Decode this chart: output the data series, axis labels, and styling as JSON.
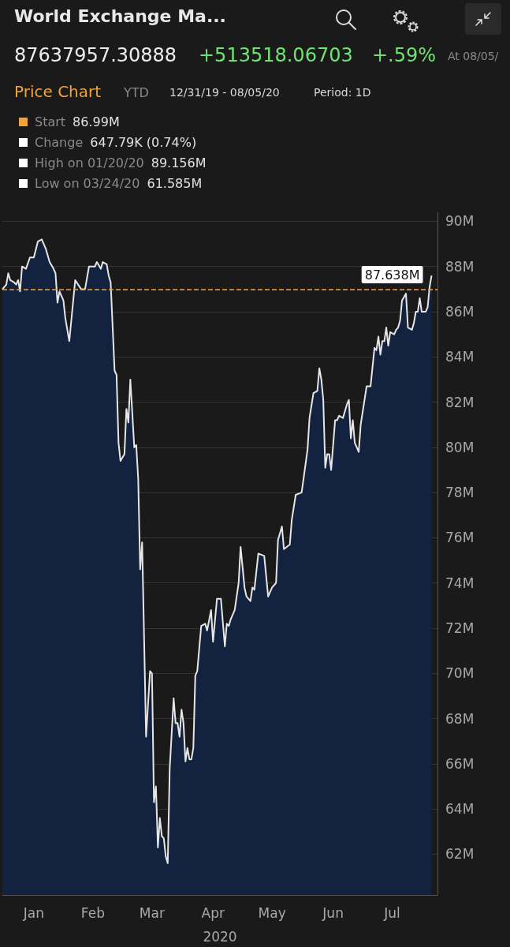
{
  "chart_data": {
    "type": "area",
    "title": "World Exchange Ma...",
    "subtitle": "Price Chart",
    "xlabel": "2020",
    "annotations": [
      "87637957.30888",
      "+513518.06703",
      "+.59%",
      "At 08/05/",
      "YTD",
      "12/31/19 - 08/05/20",
      "Period: 1D",
      "Start",
      "86.99M",
      "Change",
      "647.79K (0.74%)",
      "High on 01/20/20",
      "89.156M",
      "Low on 03/24/20",
      "61.585M",
      {
        "text": "87.638M",
        "x": "2020-08-05",
        "y": 87.638
      }
    ],
    "xlim": [
      "2019-12-31",
      "2020-08-08"
    ],
    "xticks": [
      {
        "value": "2020-01-16",
        "label": "Jan"
      },
      {
        "value": "2020-02-15",
        "label": "Feb"
      },
      {
        "value": "2020-03-16",
        "label": "Mar"
      },
      {
        "value": "2020-04-16",
        "label": "Apr"
      },
      {
        "value": "2020-05-16",
        "label": "May"
      },
      {
        "value": "2020-06-16",
        "label": "Jun"
      },
      {
        "value": "2020-07-16",
        "label": "Jul"
      }
    ],
    "ylim": [
      60.2,
      90.4
    ],
    "yticks": [
      {
        "value": 62,
        "label": "62M"
      },
      {
        "value": 64,
        "label": "64M"
      },
      {
        "value": 66,
        "label": "66M"
      },
      {
        "value": 68,
        "label": "68M"
      },
      {
        "value": 70,
        "label": "70M"
      },
      {
        "value": 72,
        "label": "72M"
      },
      {
        "value": 74,
        "label": "74M"
      },
      {
        "value": 76,
        "label": "76M"
      },
      {
        "value": 78,
        "label": "78M"
      },
      {
        "value": 80,
        "label": "80M"
      },
      {
        "value": 82,
        "label": "82M"
      },
      {
        "value": 84,
        "label": "84M"
      },
      {
        "value": 86,
        "label": "86M"
      },
      {
        "value": 88,
        "label": "88M"
      },
      {
        "value": 90,
        "label": "90M"
      }
    ],
    "grid": "y",
    "ref_lines": [
      {
        "axis": "y",
        "value": 86.99,
        "color": "#f0a43a",
        "line_style": "dashed"
      }
    ],
    "series": [
      {
        "color": "#13223f",
        "x": [
          "2019-12-31",
          "2020-01-02",
          "2020-01-03",
          "2020-01-04",
          "2020-01-06",
          "2020-01-07",
          "2020-01-08",
          "2020-01-09",
          "2020-01-10",
          "2020-01-12",
          "2020-01-14",
          "2020-01-16",
          "2020-01-18",
          "2020-01-20",
          "2020-01-22",
          "2020-01-24",
          "2020-01-26",
          "2020-01-27",
          "2020-01-28",
          "2020-01-29",
          "2020-01-31",
          "2020-02-01",
          "2020-02-03",
          "2020-02-06",
          "2020-02-09",
          "2020-02-11",
          "2020-02-13",
          "2020-02-16",
          "2020-02-17",
          "2020-02-19",
          "2020-02-20",
          "2020-02-22",
          "2020-02-23",
          "2020-02-24",
          "2020-02-26",
          "2020-02-27",
          "2020-02-28",
          "2020-02-29",
          "2020-03-02",
          "2020-03-03",
          "2020-03-04",
          "2020-03-05",
          "2020-03-07",
          "2020-03-08",
          "2020-03-09",
          "2020-03-10",
          "2020-03-11",
          "2020-03-13",
          "2020-03-15",
          "2020-03-16",
          "2020-03-17",
          "2020-03-18",
          "2020-03-19",
          "2020-03-20",
          "2020-03-21",
          "2020-03-22",
          "2020-03-23",
          "2020-03-24",
          "2020-03-25",
          "2020-03-27",
          "2020-03-28",
          "2020-03-29",
          "2020-03-30",
          "2020-03-31",
          "2020-04-01",
          "2020-04-02",
          "2020-04-03",
          "2020-04-04",
          "2020-04-05",
          "2020-04-06",
          "2020-04-07",
          "2020-04-08",
          "2020-04-10",
          "2020-04-12",
          "2020-04-13",
          "2020-04-15",
          "2020-04-16",
          "2020-04-18",
          "2020-04-20",
          "2020-04-22",
          "2020-04-23",
          "2020-04-24",
          "2020-04-25",
          "2020-04-27",
          "2020-04-29",
          "2020-04-30",
          "2020-05-02",
          "2020-05-03",
          "2020-05-05",
          "2020-05-06",
          "2020-05-07",
          "2020-05-09",
          "2020-05-12",
          "2020-05-14",
          "2020-05-16",
          "2020-05-18",
          "2020-05-19",
          "2020-05-21",
          "2020-05-22",
          "2020-05-25",
          "2020-05-26",
          "2020-05-28",
          "2020-05-31",
          "2020-06-03",
          "2020-06-04",
          "2020-06-06",
          "2020-06-08",
          "2020-06-09",
          "2020-06-10",
          "2020-06-11",
          "2020-06-12",
          "2020-06-13",
          "2020-06-14",
          "2020-06-15",
          "2020-06-17",
          "2020-06-18",
          "2020-06-19",
          "2020-06-21",
          "2020-06-23",
          "2020-06-24",
          "2020-06-25",
          "2020-06-26",
          "2020-06-27",
          "2020-06-29",
          "2020-06-30",
          "2020-07-03",
          "2020-07-05",
          "2020-07-07",
          "2020-07-08",
          "2020-07-09",
          "2020-07-10",
          "2020-07-11",
          "2020-07-12",
          "2020-07-13",
          "2020-07-14",
          "2020-07-15",
          "2020-07-17",
          "2020-07-18",
          "2020-07-19",
          "2020-07-20",
          "2020-07-21",
          "2020-07-23",
          "2020-07-24",
          "2020-07-26",
          "2020-07-27",
          "2020-07-28",
          "2020-07-29",
          "2020-07-30",
          "2020-07-31",
          "2020-08-02",
          "2020-08-03",
          "2020-08-04",
          "2020-08-05"
        ],
        "values": [
          86.99,
          87.2,
          87.7,
          87.4,
          87.3,
          87.2,
          87.4,
          86.9,
          88.0,
          87.9,
          88.4,
          88.4,
          89.1,
          89.2,
          88.8,
          88.2,
          87.9,
          87.7,
          86.4,
          86.9,
          86.5,
          85.7,
          84.7,
          87.4,
          87.0,
          87.0,
          88.0,
          88.0,
          88.2,
          87.9,
          88.2,
          88.1,
          87.6,
          87.3,
          83.4,
          83.2,
          80.2,
          79.4,
          79.7,
          81.7,
          81.1,
          83.0,
          80.0,
          80.1,
          78.6,
          74.6,
          75.8,
          67.2,
          70.1,
          70.0,
          64.3,
          65.0,
          62.3,
          63.6,
          62.8,
          62.7,
          61.9,
          61.6,
          65.8,
          68.9,
          67.8,
          67.8,
          67.2,
          68.4,
          67.8,
          66.1,
          66.7,
          66.2,
          66.2,
          66.7,
          69.9,
          70.1,
          72.1,
          72.2,
          71.9,
          72.8,
          71.4,
          73.3,
          73.3,
          71.2,
          72.2,
          72.1,
          72.4,
          72.8,
          74.0,
          75.6,
          73.8,
          73.4,
          73.2,
          73.8,
          73.7,
          75.3,
          75.2,
          73.4,
          73.8,
          74.0,
          75.9,
          76.5,
          75.5,
          75.7,
          76.8,
          77.9,
          78.0,
          79.9,
          81.3,
          82.4,
          82.5,
          83.5,
          83.0,
          82.1,
          79.1,
          79.7,
          79.7,
          79.0,
          81.2,
          81.2,
          81.4,
          81.3,
          81.9,
          82.1,
          80.4,
          81.2,
          80.2,
          79.8,
          81.0,
          82.7,
          82.7,
          84.4,
          84.3,
          84.9,
          84.1,
          84.7,
          84.7,
          85.3,
          84.5,
          85.1,
          85.0,
          85.2,
          85.3,
          85.6,
          86.5,
          86.8,
          85.3,
          85.2,
          85.5,
          86.0,
          86.0,
          86.6,
          86.0,
          86.0,
          86.2,
          87.1,
          87.6
        ]
      }
    ]
  }
}
